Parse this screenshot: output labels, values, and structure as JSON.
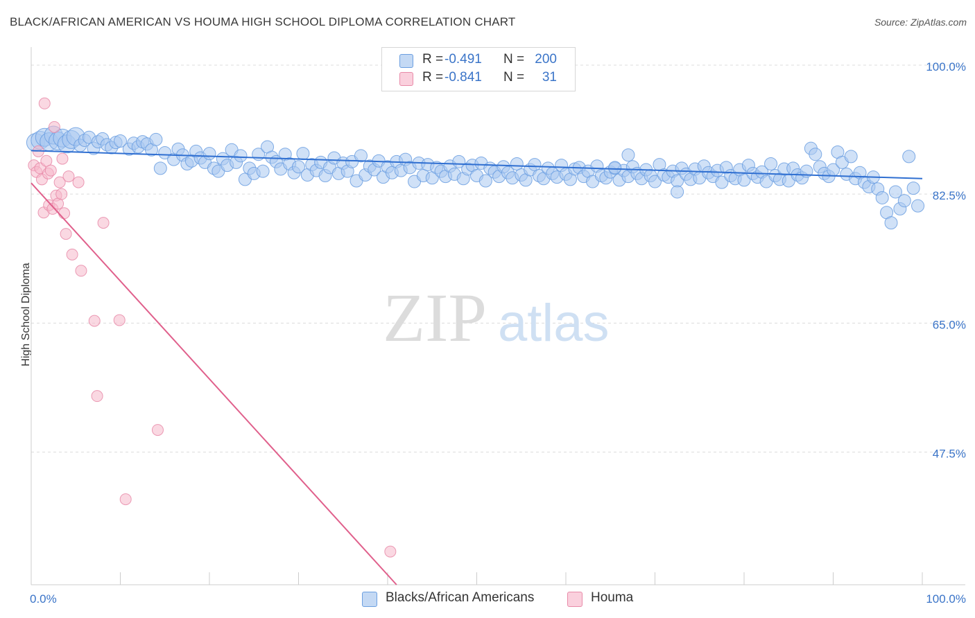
{
  "title": "BLACK/AFRICAN AMERICAN VS HOUMA HIGH SCHOOL DIPLOMA CORRELATION CHART",
  "source": "Source: ZipAtlas.com",
  "watermark": {
    "zip": "ZIP",
    "atlas": "atlas"
  },
  "legend": {
    "rows": [
      {
        "r_label": "R =",
        "r_value": "-0.491",
        "n_label": "N =",
        "n_value": "200",
        "color": "#a9c8f0"
      },
      {
        "r_label": "R =",
        "r_value": "-0.841",
        "n_label": "N =",
        "n_value": "31",
        "color": "#f6b8cb"
      }
    ]
  },
  "chart_data": {
    "type": "scatter",
    "title": "BLACK/AFRICAN AMERICAN VS HOUMA HIGH SCHOOL DIPLOMA CORRELATION CHART",
    "xlabel": "",
    "ylabel": "High School Diploma",
    "xlim": [
      0,
      100
    ],
    "ylim": [
      29.5,
      101.5
    ],
    "x_tick_labels": [
      "0.0%",
      "100.0%"
    ],
    "y_ticks": [
      100.0,
      82.5,
      65.0,
      47.5
    ],
    "y_tick_labels": [
      "100.0%",
      "82.5%",
      "65.0%",
      "47.5%"
    ],
    "grid": true,
    "legend_placement": "top-center",
    "series": [
      {
        "name": "Blacks/African Americans",
        "color": "#6a9ee0",
        "fill": "#a9c8f0",
        "trendline": {
          "x": [
            0,
            100
          ],
          "y": [
            88.4,
            84.6
          ]
        },
        "points": [
          [
            0.5,
            89.5
          ],
          [
            1.0,
            89.8
          ],
          [
            1.5,
            90.2
          ],
          [
            2.0,
            89.6
          ],
          [
            2.5,
            90.5
          ],
          [
            3.0,
            89.7
          ],
          [
            3.5,
            90.1
          ],
          [
            4.0,
            89.3
          ],
          [
            4.5,
            89.9
          ],
          [
            5.0,
            90.3
          ],
          [
            5.5,
            89.1
          ],
          [
            6.0,
            89.8
          ],
          [
            6.5,
            90.2
          ],
          [
            7.0,
            88.7
          ],
          [
            7.5,
            89.6
          ],
          [
            8.0,
            90.0
          ],
          [
            8.5,
            89.2
          ],
          [
            9.0,
            88.8
          ],
          [
            9.5,
            89.5
          ],
          [
            10.0,
            89.7
          ],
          [
            11.0,
            88.6
          ],
          [
            11.5,
            89.4
          ],
          [
            12.0,
            88.9
          ],
          [
            12.5,
            89.6
          ],
          [
            13.0,
            89.3
          ],
          [
            13.5,
            88.5
          ],
          [
            14.0,
            89.9
          ],
          [
            14.5,
            86.0
          ],
          [
            15.0,
            88.1
          ],
          [
            16.0,
            87.2
          ],
          [
            16.5,
            88.6
          ],
          [
            17.0,
            87.8
          ],
          [
            17.5,
            86.6
          ],
          [
            18.0,
            87.0
          ],
          [
            18.5,
            88.3
          ],
          [
            19.0,
            87.4
          ],
          [
            19.5,
            86.8
          ],
          [
            20.0,
            88.0
          ],
          [
            20.5,
            86.0
          ],
          [
            21.0,
            85.6
          ],
          [
            21.5,
            87.3
          ],
          [
            22.0,
            86.4
          ],
          [
            22.5,
            88.5
          ],
          [
            23.0,
            86.8
          ],
          [
            23.5,
            87.7
          ],
          [
            24.0,
            84.5
          ],
          [
            24.5,
            86.0
          ],
          [
            25.0,
            85.3
          ],
          [
            25.5,
            87.9
          ],
          [
            26.0,
            85.6
          ],
          [
            26.5,
            88.9
          ],
          [
            27.0,
            87.5
          ],
          [
            27.5,
            86.9
          ],
          [
            28.0,
            85.9
          ],
          [
            28.5,
            87.9
          ],
          [
            29.0,
            86.6
          ],
          [
            29.5,
            85.4
          ],
          [
            30.0,
            86.2
          ],
          [
            30.5,
            88.0
          ],
          [
            31.0,
            85.1
          ],
          [
            31.5,
            86.5
          ],
          [
            32.0,
            85.7
          ],
          [
            32.5,
            86.8
          ],
          [
            33.0,
            85.0
          ],
          [
            33.5,
            86.1
          ],
          [
            34.0,
            87.4
          ],
          [
            34.5,
            85.3
          ],
          [
            35.0,
            86.7
          ],
          [
            35.5,
            85.6
          ],
          [
            36.0,
            86.9
          ],
          [
            36.5,
            84.3
          ],
          [
            37.0,
            87.7
          ],
          [
            37.5,
            85.1
          ],
          [
            38.0,
            86.3
          ],
          [
            38.5,
            85.8
          ],
          [
            39.0,
            87.0
          ],
          [
            39.5,
            84.8
          ],
          [
            40.0,
            86.2
          ],
          [
            40.5,
            85.4
          ],
          [
            41.0,
            86.9
          ],
          [
            41.5,
            85.7
          ],
          [
            42.0,
            87.2
          ],
          [
            42.5,
            86.1
          ],
          [
            43.0,
            84.2
          ],
          [
            43.5,
            86.7
          ],
          [
            44.0,
            85.0
          ],
          [
            44.5,
            86.5
          ],
          [
            45.0,
            84.7
          ],
          [
            45.5,
            86.1
          ],
          [
            46.0,
            85.6
          ],
          [
            46.5,
            84.9
          ],
          [
            47.0,
            86.3
          ],
          [
            47.5,
            85.2
          ],
          [
            48.0,
            86.9
          ],
          [
            48.5,
            84.6
          ],
          [
            49.0,
            85.9
          ],
          [
            49.5,
            86.4
          ],
          [
            50.0,
            85.0
          ],
          [
            50.5,
            86.7
          ],
          [
            51.0,
            84.3
          ],
          [
            51.5,
            86.0
          ],
          [
            52.0,
            85.5
          ],
          [
            52.5,
            84.9
          ],
          [
            53.0,
            86.2
          ],
          [
            53.5,
            85.4
          ],
          [
            54.0,
            84.7
          ],
          [
            54.5,
            86.6
          ],
          [
            55.0,
            85.1
          ],
          [
            55.5,
            84.4
          ],
          [
            56.0,
            85.8
          ],
          [
            56.5,
            86.5
          ],
          [
            57.0,
            85.0
          ],
          [
            57.5,
            84.6
          ],
          [
            58.0,
            86.0
          ],
          [
            58.5,
            85.3
          ],
          [
            59.0,
            84.8
          ],
          [
            59.5,
            86.4
          ],
          [
            60.0,
            85.2
          ],
          [
            60.5,
            84.5
          ],
          [
            61.0,
            85.9
          ],
          [
            61.5,
            86.1
          ],
          [
            62.0,
            84.9
          ],
          [
            62.5,
            85.6
          ],
          [
            63.0,
            84.2
          ],
          [
            63.5,
            86.3
          ],
          [
            64.0,
            85.0
          ],
          [
            64.5,
            84.7
          ],
          [
            65.0,
            85.5
          ],
          [
            65.5,
            86.0
          ],
          [
            66.0,
            84.4
          ],
          [
            66.5,
            85.7
          ],
          [
            67.0,
            84.9
          ],
          [
            67.5,
            86.2
          ],
          [
            68.0,
            85.3
          ],
          [
            68.5,
            84.6
          ],
          [
            69.0,
            85.8
          ],
          [
            69.5,
            85.0
          ],
          [
            70.0,
            84.2
          ],
          [
            70.5,
            86.5
          ],
          [
            71.0,
            85.1
          ],
          [
            71.5,
            84.8
          ],
          [
            72.0,
            85.6
          ],
          [
            72.5,
            84.3
          ],
          [
            73.0,
            86.0
          ],
          [
            73.5,
            85.2
          ],
          [
            74.0,
            84.5
          ],
          [
            74.5,
            85.9
          ],
          [
            75.0,
            84.7
          ],
          [
            75.5,
            86.3
          ],
          [
            76.0,
            85.4
          ],
          [
            76.5,
            84.9
          ],
          [
            77.0,
            85.7
          ],
          [
            77.5,
            84.1
          ],
          [
            78.0,
            86.1
          ],
          [
            78.5,
            85.0
          ],
          [
            79.0,
            84.6
          ],
          [
            79.5,
            85.8
          ],
          [
            80.0,
            84.4
          ],
          [
            80.5,
            86.4
          ],
          [
            81.0,
            85.3
          ],
          [
            81.5,
            84.8
          ],
          [
            82.0,
            85.5
          ],
          [
            82.5,
            84.2
          ],
          [
            83.0,
            86.6
          ],
          [
            83.5,
            85.0
          ],
          [
            84.0,
            84.5
          ],
          [
            84.5,
            85.9
          ],
          [
            85.0,
            84.3
          ],
          [
            85.5,
            86.0
          ],
          [
            86.0,
            85.1
          ],
          [
            86.5,
            84.7
          ],
          [
            87.0,
            85.6
          ],
          [
            87.5,
            88.7
          ],
          [
            88.0,
            87.9
          ],
          [
            88.5,
            86.2
          ],
          [
            89.0,
            85.3
          ],
          [
            89.5,
            84.9
          ],
          [
            90.0,
            85.8
          ],
          [
            90.5,
            88.2
          ],
          [
            91.0,
            86.8
          ],
          [
            91.5,
            85.2
          ],
          [
            92.0,
            87.6
          ],
          [
            92.5,
            84.6
          ],
          [
            93.0,
            85.4
          ],
          [
            93.5,
            84.1
          ],
          [
            94.0,
            83.5
          ],
          [
            94.5,
            84.8
          ],
          [
            95.0,
            83.2
          ],
          [
            95.5,
            82.0
          ],
          [
            96.0,
            80.0
          ],
          [
            96.5,
            78.6
          ],
          [
            97.0,
            82.8
          ],
          [
            97.5,
            80.5
          ],
          [
            98.0,
            81.6
          ],
          [
            98.5,
            87.6
          ],
          [
            99.0,
            83.3
          ],
          [
            99.5,
            80.9
          ],
          [
            65.5,
            86.1
          ],
          [
            67.0,
            87.8
          ],
          [
            72.5,
            82.8
          ]
        ]
      },
      {
        "name": "Houma",
        "color": "#e88aa8",
        "fill": "#f6b8cb",
        "trendline": {
          "x": [
            0,
            41
          ],
          "y": [
            84.0,
            29.5
          ]
        },
        "points": [
          [
            0.3,
            86.4
          ],
          [
            0.6,
            85.5
          ],
          [
            0.8,
            88.3
          ],
          [
            1.0,
            86.0
          ],
          [
            1.2,
            84.5
          ],
          [
            1.4,
            80.0
          ],
          [
            1.5,
            94.8
          ],
          [
            1.7,
            87.0
          ],
          [
            1.9,
            85.3
          ],
          [
            2.0,
            81.0
          ],
          [
            2.2,
            85.7
          ],
          [
            2.4,
            80.5
          ],
          [
            2.6,
            91.6
          ],
          [
            2.8,
            82.3
          ],
          [
            3.0,
            81.2
          ],
          [
            3.2,
            84.1
          ],
          [
            3.4,
            82.5
          ],
          [
            3.5,
            87.3
          ],
          [
            3.7,
            79.9
          ],
          [
            3.9,
            77.1
          ],
          [
            4.2,
            84.9
          ],
          [
            4.6,
            74.3
          ],
          [
            5.3,
            84.1
          ],
          [
            5.6,
            72.1
          ],
          [
            7.1,
            65.3
          ],
          [
            7.4,
            55.1
          ],
          [
            8.1,
            78.6
          ],
          [
            9.9,
            65.4
          ],
          [
            10.6,
            41.1
          ],
          [
            14.2,
            50.5
          ],
          [
            40.3,
            34.0
          ]
        ]
      }
    ]
  }
}
